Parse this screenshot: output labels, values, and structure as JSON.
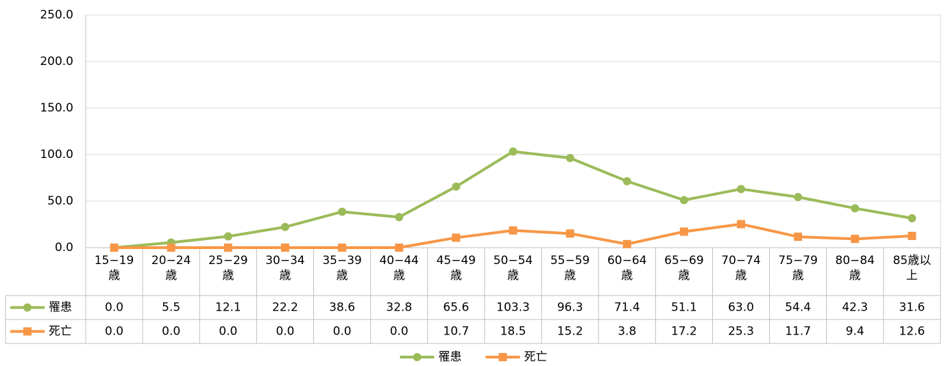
{
  "chart_data": {
    "type": "line",
    "categories": [
      "15−19歳",
      "20−24歳",
      "25−29歳",
      "30−34歳",
      "35−39歳",
      "40−44歳",
      "45−49歳",
      "50−54歳",
      "55−59歳",
      "60−64歳",
      "65−69歳",
      "70−74歳",
      "75−79歳",
      "80−84歳",
      "85歳以上"
    ],
    "series": [
      {
        "name": "罹患",
        "color": "#9bbb59",
        "marker": "circle",
        "values": [
          0.0,
          5.5,
          12.1,
          22.2,
          38.6,
          32.8,
          65.6,
          103.3,
          96.3,
          71.4,
          51.1,
          63.0,
          54.4,
          42.3,
          31.6
        ],
        "value_labels": [
          "0.0",
          "5.5",
          "12.1",
          "22.2",
          "38.6",
          "32.8",
          "65.6",
          "103.3",
          "96.3",
          "71.4",
          "51.1",
          "63.0",
          "54.4",
          "42.3",
          "31.6"
        ]
      },
      {
        "name": "死亡",
        "color": "#f79646",
        "marker": "square",
        "values": [
          0.0,
          0.0,
          0.0,
          0.0,
          0.0,
          0.0,
          10.7,
          18.5,
          15.2,
          3.8,
          17.2,
          25.3,
          11.7,
          9.4,
          12.6
        ],
        "value_labels": [
          "0.0",
          "0.0",
          "0.0",
          "0.0",
          "0.0",
          "0.0",
          "10.7",
          "18.5",
          "15.2",
          "3.8",
          "17.2",
          "25.3",
          "11.7",
          "9.4",
          "12.6"
        ]
      }
    ],
    "ylim": [
      0,
      250
    ],
    "yticks": [
      {
        "value": 0,
        "label": "0.0"
      },
      {
        "value": 50,
        "label": "50.0"
      },
      {
        "value": 100,
        "label": "100.0"
      },
      {
        "value": 150,
        "label": "150.0"
      },
      {
        "value": 200,
        "label": "200.0"
      },
      {
        "value": 250,
        "label": "250.0"
      }
    ],
    "grid": true,
    "legend": "bottom"
  }
}
